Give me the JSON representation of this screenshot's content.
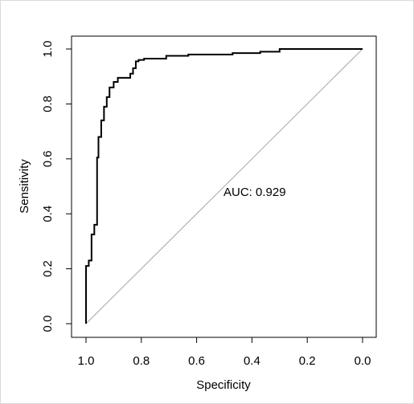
{
  "chart_data": {
    "type": "line",
    "xlabel": "Specificity",
    "ylabel": "Sensitivity",
    "xlim": [
      1.0,
      0.0
    ],
    "ylim": [
      0.0,
      1.0
    ],
    "x_reversed": true,
    "grid": false,
    "xticks": [
      1.0,
      0.8,
      0.6,
      0.4,
      0.2,
      0.0
    ],
    "xtick_labels": [
      "1.0",
      "0.8",
      "0.6",
      "0.4",
      "0.2",
      "0.0"
    ],
    "yticks": [
      0.0,
      0.2,
      0.4,
      0.6,
      0.8,
      1.0
    ],
    "ytick_labels": [
      "0.0",
      "0.2",
      "0.4",
      "0.6",
      "0.8",
      "1.0"
    ],
    "annotation": "AUC: 0.929",
    "reference_line": {
      "from": [
        1.0,
        0.0
      ],
      "to": [
        0.0,
        1.0
      ],
      "color": "#a6a6a6"
    },
    "series": [
      {
        "color": "#000000",
        "x": [
          1.0,
          1.0,
          0.99,
          0.99,
          0.98,
          0.98,
          0.97,
          0.97,
          0.96,
          0.96,
          0.955,
          0.955,
          0.945,
          0.945,
          0.935,
          0.935,
          0.925,
          0.925,
          0.915,
          0.915,
          0.9,
          0.9,
          0.885,
          0.885,
          0.875,
          0.875,
          0.84,
          0.84,
          0.83,
          0.83,
          0.82,
          0.82,
          0.81,
          0.81,
          0.79,
          0.79,
          0.76,
          0.76,
          0.71,
          0.71,
          0.67,
          0.67,
          0.63,
          0.63,
          0.47,
          0.47,
          0.37,
          0.37,
          0.3,
          0.3,
          0.0
        ],
        "y": [
          0.0,
          0.21,
          0.21,
          0.23,
          0.23,
          0.325,
          0.325,
          0.36,
          0.36,
          0.605,
          0.605,
          0.68,
          0.68,
          0.74,
          0.74,
          0.79,
          0.79,
          0.825,
          0.825,
          0.86,
          0.86,
          0.88,
          0.88,
          0.895,
          0.895,
          0.895,
          0.895,
          0.91,
          0.91,
          0.93,
          0.93,
          0.955,
          0.955,
          0.96,
          0.96,
          0.965,
          0.965,
          0.965,
          0.965,
          0.975,
          0.975,
          0.975,
          0.975,
          0.98,
          0.98,
          0.985,
          0.985,
          0.99,
          0.99,
          1.0,
          1.0
        ]
      }
    ]
  }
}
